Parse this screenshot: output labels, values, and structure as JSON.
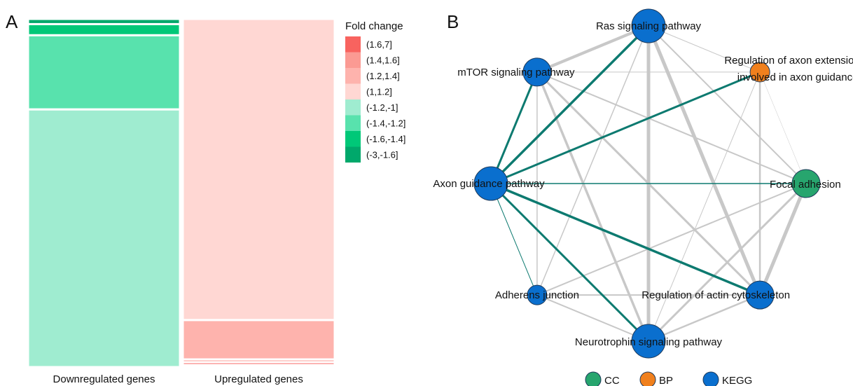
{
  "panels": {
    "a_label": "A",
    "b_label": "B"
  },
  "colors": {
    "(1.6,7]": "#f8635f",
    "(1.4,1.6]": "#fb9a93",
    "(1.2,1.4]": "#feb3ad",
    "(1,1.2]": "#ffd7d3",
    "(-1.2,-1]": "#9fecd0",
    "(-1.4,-1.2]": "#58e2ad",
    "(-1.6,-1.4]": "#00c878",
    "(-3,-1.6]": "#00a86b",
    "kegg": "#0a6fce",
    "bp": "#f0801d",
    "cc": "#27a56e",
    "edge_gray": "#c8c8c8",
    "edge_teal": "#0d7a70"
  },
  "chart_data": [
    {
      "type": "treemap",
      "panel": "A",
      "legend_title": "Fold change",
      "legend": [
        "(1.6,7]",
        "(1.4,1.6]",
        "(1.2,1.4]",
        "(1,1.2]",
        "(-1.2,-1]",
        "(-1.4,-1.2]",
        "(-1.6,-1.4]",
        "(-3,-1.6]"
      ],
      "groups": [
        {
          "name": "Downregulated genes",
          "share_of_width": 0.5,
          "segments": [
            {
              "category": "(-3,-1.6]",
              "fraction": 0.015
            },
            {
              "category": "(-1.6,-1.4]",
              "fraction": 0.032
            },
            {
              "category": "(-1.4,-1.2]",
              "fraction": 0.213
            },
            {
              "category": "(-1.2,-1]",
              "fraction": 0.74
            }
          ]
        },
        {
          "name": "Upregulated genes",
          "share_of_width": 0.5,
          "segments": [
            {
              "category": "(1,1.2]",
              "fraction": 0.865
            },
            {
              "category": "(1.2,1.4]",
              "fraction": 0.113
            },
            {
              "category": "(1.4,1.6]",
              "fraction": 0.008
            },
            {
              "category": "(1.6,7]",
              "fraction": 0.008
            },
            {
              "category": "(1,1.2]",
              "fraction": 0.006
            }
          ]
        }
      ]
    },
    {
      "type": "network",
      "panel": "B",
      "nodes": [
        {
          "id": "ras",
          "label": "Ras signaling pathway",
          "category": "KEGG",
          "size": "large"
        },
        {
          "id": "axonext",
          "label": "Regulation of axon extension involved in axon guidance",
          "category": "BP",
          "size": "small"
        },
        {
          "id": "focal",
          "label": "Focal adhesion",
          "category": "CC",
          "size": "medium"
        },
        {
          "id": "actin",
          "label": "Regulation of actin cytoskeleton",
          "category": "KEGG",
          "size": "medium"
        },
        {
          "id": "neuro",
          "label": "Neurotrophin signaling pathway",
          "category": "KEGG",
          "size": "large"
        },
        {
          "id": "adherens",
          "label": "Adherens junction",
          "category": "KEGG",
          "size": "small"
        },
        {
          "id": "axonguid",
          "label": "Axon guidance pathway",
          "category": "KEGG",
          "size": "large"
        },
        {
          "id": "mtor",
          "label": "mTOR signaling pathway",
          "category": "KEGG",
          "size": "medium"
        }
      ],
      "edges": [
        {
          "source": "axonguid",
          "target": "ras",
          "style": "teal",
          "weight": 3.5
        },
        {
          "source": "axonguid",
          "target": "mtor",
          "style": "teal",
          "weight": 3
        },
        {
          "source": "axonguid",
          "target": "axonext",
          "style": "teal",
          "weight": 3
        },
        {
          "source": "axonguid",
          "target": "focal",
          "style": "teal",
          "weight": 1.5
        },
        {
          "source": "axonguid",
          "target": "actin",
          "style": "teal",
          "weight": 3.5
        },
        {
          "source": "axonguid",
          "target": "neuro",
          "style": "teal",
          "weight": 3
        },
        {
          "source": "axonguid",
          "target": "adherens",
          "style": "teal",
          "weight": 1
        },
        {
          "source": "ras",
          "target": "neuro",
          "style": "gray",
          "weight": 5
        },
        {
          "source": "ras",
          "target": "actin",
          "style": "gray",
          "weight": 5
        },
        {
          "source": "ras",
          "target": "mtor",
          "style": "gray",
          "weight": 4
        },
        {
          "source": "ras",
          "target": "focal",
          "style": "gray",
          "weight": 2
        },
        {
          "source": "ras",
          "target": "adherens",
          "style": "gray",
          "weight": 1.5
        },
        {
          "source": "ras",
          "target": "axonext",
          "style": "gray",
          "weight": 1
        },
        {
          "source": "mtor",
          "target": "neuro",
          "style": "gray",
          "weight": 3.5
        },
        {
          "source": "mtor",
          "target": "actin",
          "style": "gray",
          "weight": 3
        },
        {
          "source": "mtor",
          "target": "focal",
          "style": "gray",
          "weight": 2
        },
        {
          "source": "mtor",
          "target": "adherens",
          "style": "gray",
          "weight": 1.5
        },
        {
          "source": "mtor",
          "target": "axonext",
          "style": "gray",
          "weight": 1
        },
        {
          "source": "focal",
          "target": "actin",
          "style": "gray",
          "weight": 5
        },
        {
          "source": "focal",
          "target": "neuro",
          "style": "gray",
          "weight": 3
        },
        {
          "source": "focal",
          "target": "adherens",
          "style": "gray",
          "weight": 2
        },
        {
          "source": "axonext",
          "target": "actin",
          "style": "gray",
          "weight": 2.5
        },
        {
          "source": "axonext",
          "target": "neuro",
          "style": "gray",
          "weight": 1
        },
        {
          "source": "axonext",
          "target": "focal",
          "style": "gray",
          "weight": 0.5
        },
        {
          "source": "actin",
          "target": "neuro",
          "style": "gray",
          "weight": 2.5
        },
        {
          "source": "actin",
          "target": "adherens",
          "style": "gray",
          "weight": 2
        },
        {
          "source": "adherens",
          "target": "neuro",
          "style": "gray",
          "weight": 2
        },
        {
          "source": "mtor",
          "target": "ras",
          "style": "gray",
          "weight": 4
        }
      ],
      "legend": [
        {
          "label": "CC",
          "category": "CC"
        },
        {
          "label": "BP",
          "category": "BP"
        },
        {
          "label": "KEGG",
          "category": "KEGG"
        }
      ]
    }
  ]
}
